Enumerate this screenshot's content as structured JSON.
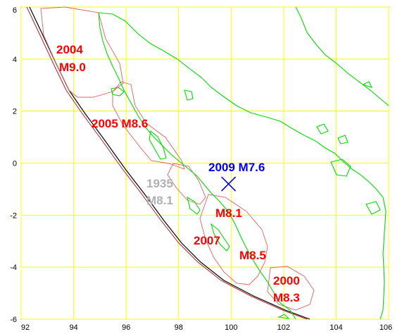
{
  "map": {
    "x_axis": {
      "min": 92,
      "max": 106,
      "ticks": [
        "92",
        "94",
        "96",
        "98",
        "100",
        "102",
        "104",
        "106"
      ]
    },
    "y_axis": {
      "min": -6,
      "max": 6,
      "ticks": [
        "6",
        "4",
        "2",
        "0",
        "-2",
        "-4",
        "-6"
      ]
    },
    "grid_color": "#ffff00",
    "coastline_color": "#00dd00",
    "rupture_outline_color": "#e06060",
    "trench_colors": [
      "#000000",
      "#aa2222"
    ]
  },
  "earthquakes": [
    {
      "id": "2004",
      "line1": "2004",
      "line2": "M9.0",
      "color": "#ff0000"
    },
    {
      "id": "2005",
      "line1": "2005 M8.6",
      "color": "#ff0000"
    },
    {
      "id": "2009",
      "line1": "2009 M7.6",
      "color": "#0000ee"
    },
    {
      "id": "1935",
      "line1": "1935",
      "line2": "M8.1",
      "color": "#b0b0b0"
    },
    {
      "id": "2007",
      "line1": "2007",
      "line2a": "M8.1",
      "line2b": "M8.5",
      "color": "#ff0000"
    },
    {
      "id": "2000",
      "line1": "2000",
      "line2": "M8.3",
      "color": "#ff0000"
    }
  ],
  "epicenter": {
    "lon": 99.9,
    "lat": -0.8,
    "symbol": "x-mark",
    "color": "#0000ee"
  }
}
